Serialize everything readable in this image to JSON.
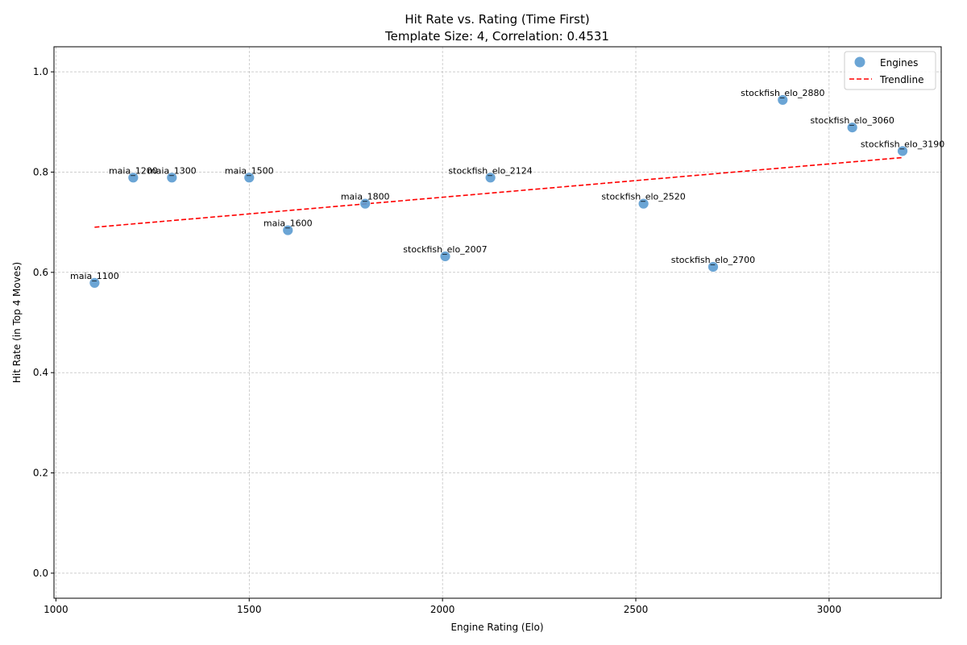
{
  "chart_data": {
    "type": "scatter",
    "title": "Hit Rate vs. Rating (Time First)",
    "subtitle": "Template Size: 4, Correlation: 0.4531",
    "xlabel": "Engine Rating (Elo)",
    "ylabel": "Hit Rate (in Top 4 Moves)",
    "xlim": [
      995,
      3290
    ],
    "ylim": [
      -0.05,
      1.05
    ],
    "xticks": [
      1000,
      1500,
      2000,
      2500,
      3000
    ],
    "yticks": [
      0.0,
      0.2,
      0.4,
      0.6,
      0.8,
      1.0
    ],
    "xtick_labels": [
      "1000",
      "1500",
      "2000",
      "2500",
      "3000"
    ],
    "ytick_labels": [
      "0.0",
      "0.2",
      "0.4",
      "0.6",
      "0.8",
      "1.0"
    ],
    "grid": true,
    "legend_position": "top-right",
    "series": [
      {
        "name": "Engines",
        "kind": "scatter",
        "color": "#5b9bd0",
        "points": [
          {
            "label": "maia_1100",
            "x": 1100,
            "y": 0.579
          },
          {
            "label": "maia_1200",
            "x": 1200,
            "y": 0.789
          },
          {
            "label": "maia_1300",
            "x": 1300,
            "y": 0.789
          },
          {
            "label": "maia_1500",
            "x": 1500,
            "y": 0.789
          },
          {
            "label": "maia_1600",
            "x": 1600,
            "y": 0.684
          },
          {
            "label": "maia_1800",
            "x": 1800,
            "y": 0.737
          },
          {
            "label": "stockfish_elo_2007",
            "x": 2007,
            "y": 0.632
          },
          {
            "label": "stockfish_elo_2124",
            "x": 2124,
            "y": 0.789
          },
          {
            "label": "stockfish_elo_2520",
            "x": 2520,
            "y": 0.737
          },
          {
            "label": "stockfish_elo_2700",
            "x": 2700,
            "y": 0.611
          },
          {
            "label": "stockfish_elo_2880",
            "x": 2880,
            "y": 0.944
          },
          {
            "label": "stockfish_elo_3060",
            "x": 3060,
            "y": 0.889
          },
          {
            "label": "stockfish_elo_3190",
            "x": 3190,
            "y": 0.842
          }
        ]
      },
      {
        "name": "Trendline",
        "kind": "line",
        "color": "#ff0000",
        "dashed": true,
        "x": [
          1100,
          3190
        ],
        "y": [
          0.69,
          0.829
        ]
      }
    ]
  }
}
